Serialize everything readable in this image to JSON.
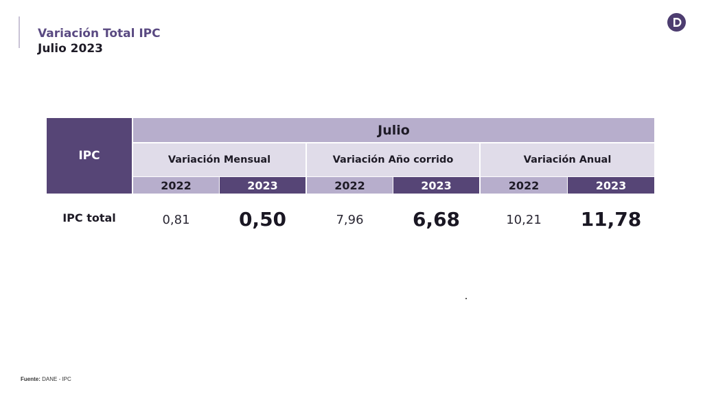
{
  "header": {
    "title": "Variación Total IPC",
    "subtitle": "Julio 2023"
  },
  "logo": {
    "icon": "dane-logo-icon",
    "letter": "D",
    "color": "#4d3d70"
  },
  "table": {
    "corner_label": "IPC",
    "month": "Julio",
    "groups": [
      {
        "label": "Variación Mensual",
        "years": [
          "2022",
          "2023"
        ],
        "values": [
          "0,81",
          "0,50"
        ]
      },
      {
        "label": "Variación Año corrido",
        "years": [
          "2022",
          "2023"
        ],
        "values": [
          "7,96",
          "6,68"
        ]
      },
      {
        "label": "Variación Anual",
        "years": [
          "2022",
          "2023"
        ],
        "values": [
          "10,21",
          "11,78"
        ]
      }
    ],
    "row_label": "IPC total"
  },
  "colors": {
    "dark_purple": "#564576",
    "light_purple": "#b7aecc",
    "pale_purple": "#e0dce9",
    "title_purple": "#5a4a82"
  },
  "footer": {
    "source_label": "Fuente:",
    "source_value": "DANE - IPC"
  }
}
